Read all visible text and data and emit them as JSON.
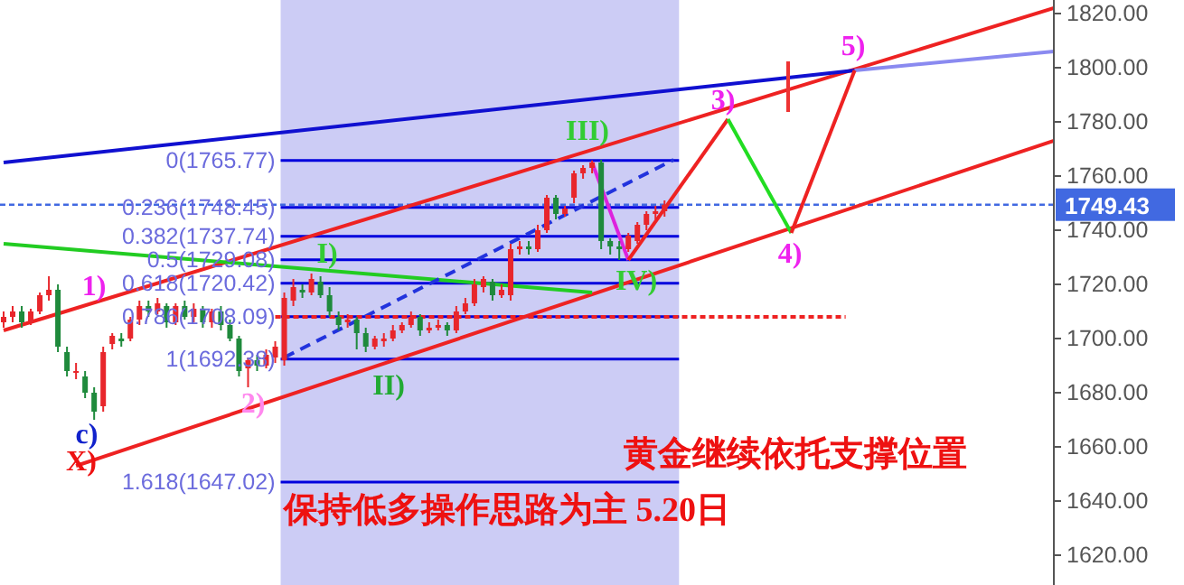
{
  "chart_data": {
    "type": "candlestick",
    "colors": [
      "#e8262b",
      "#e8262b",
      "#1f8a3c",
      "#e8262b",
      "#e8262b",
      "#e8262b",
      "#1f8a3c",
      "#1f8a3c",
      "#e8262b",
      "#1f8a3c",
      "#1f8a3c",
      "#e8262b",
      "#e8262b",
      "#1f8a3c",
      "#e8262b",
      "#e8262b",
      "#1f8a3c",
      "#e8262b",
      "#1f8a3c",
      "#e8262b",
      "#1f8a3c",
      "#e8262b",
      "#1f8a3c",
      "#e8262b",
      "#1f8a3c",
      "#1f8a3c",
      "#1f8a3c",
      "#e8262b",
      "#1f8a3c",
      "#e8262b",
      "#e8262b",
      "#e8262b",
      "#e8262b",
      "#1f8a3c",
      "#e8262b",
      "#1f8a3c",
      "#1f8a3c",
      "#1f8a3c",
      "#e8262b",
      "#1f8a3c",
      "#1f8a3c",
      "#e8262b",
      "#e8262b",
      "#e8262b",
      "#e8262b",
      "#e8262b",
      "#1f8a3c",
      "#e8262b",
      "#e8262b",
      "#1f8a3c",
      "#e8262b",
      "#e8262b",
      "#e8262b",
      "#e8262b",
      "#1f8a3c",
      "#e8262b",
      "#e8262b",
      "#e8262b",
      "#1f8a3c",
      "#e8262b",
      "#e8262b",
      "#1f8a3c",
      "#e8262b",
      "#e8262b",
      "#e8262b",
      "#e8262b",
      "#1f8a3c",
      "#1f8a3c",
      "#1f8a3c",
      "#e8262b",
      "#e8262b",
      "#e8262b",
      "#e8262b",
      "#e8262b",
      null,
      null,
      null,
      null,
      null,
      null,
      null,
      null,
      null,
      null,
      null,
      null,
      null,
      null,
      null,
      null,
      null,
      null,
      null,
      null,
      null,
      null,
      null,
      null,
      null,
      null,
      null,
      null,
      null,
      null,
      null,
      null,
      null,
      null,
      null,
      null,
      null,
      null,
      null,
      null,
      null,
      null,
      null
    ],
    "categories": [
      null,
      null,
      null,
      null,
      null,
      null,
      null,
      null,
      null,
      null,
      null,
      null,
      null,
      null,
      null,
      null,
      null,
      null,
      null,
      null,
      null,
      null,
      null,
      null,
      null,
      null,
      null,
      null,
      null,
      null,
      null,
      null,
      null,
      null,
      null,
      null,
      null,
      null,
      null,
      null,
      null,
      null,
      null,
      null,
      null,
      null,
      null,
      null,
      null,
      null,
      null,
      null,
      null,
      null,
      null,
      null,
      null,
      null,
      null,
      null,
      null,
      null,
      null,
      null,
      null,
      null,
      null,
      null,
      null,
      null,
      null,
      null,
      null,
      null,
      null,
      null,
      null,
      null,
      null,
      null,
      null,
      null,
      null,
      null,
      null,
      null,
      null,
      null,
      null,
      null,
      null,
      null,
      null,
      null,
      null,
      null,
      null,
      null,
      null,
      null,
      null,
      null,
      null,
      null,
      null,
      null,
      null,
      null,
      null,
      null,
      null,
      null,
      null,
      null,
      null,
      null,
      null
    ],
    "ohlc": [
      [
        1706,
        1710,
        1704,
        1708
      ],
      [
        1708,
        1712,
        1706,
        1710
      ],
      [
        1710,
        1712,
        1704,
        1706
      ],
      [
        1706,
        1711,
        1705,
        1710
      ],
      [
        1710,
        1717,
        1709,
        1716
      ],
      [
        1716,
        1723,
        1714,
        1718
      ],
      [
        1718,
        1720,
        1695,
        1697
      ],
      [
        1695,
        1697,
        1686,
        1688
      ],
      [
        1688,
        1691,
        1685,
        1688
      ],
      [
        1686,
        1688,
        1678,
        1680
      ],
      [
        1680,
        1682,
        1670,
        1673
      ],
      [
        1675,
        1697,
        1673,
        1695
      ],
      [
        1698,
        1702,
        1696,
        1701
      ],
      [
        1700,
        1702,
        1697,
        1699
      ],
      [
        1700,
        1708,
        1699,
        1707
      ],
      [
        1707,
        1714,
        1705,
        1712
      ],
      [
        1712,
        1714,
        1708,
        1710
      ],
      [
        1710,
        1715,
        1709,
        1713
      ],
      [
        1712,
        1713,
        1704,
        1706
      ],
      [
        1706,
        1713,
        1705,
        1712
      ],
      [
        1712,
        1714,
        1707,
        1708
      ],
      [
        1708,
        1713,
        1706,
        1711
      ],
      [
        1711,
        1712,
        1704,
        1706
      ],
      [
        1706,
        1711,
        1704,
        1710
      ],
      [
        1710,
        1712,
        1703,
        1705
      ],
      [
        1705,
        1707,
        1699,
        1700
      ],
      [
        1700,
        1701,
        1686,
        1688
      ],
      [
        1689,
        1693,
        1682,
        1692
      ],
      [
        1692,
        1694,
        1688,
        1690
      ],
      [
        1690,
        1696,
        1689,
        1694
      ],
      [
        1693,
        1699,
        1691,
        1697
      ],
      [
        1692,
        1717,
        1690,
        1715
      ],
      [
        1714,
        1722,
        1712,
        1719
      ],
      [
        1718,
        1720,
        1715,
        1717
      ],
      [
        1717,
        1724,
        1716,
        1722
      ],
      [
        1721,
        1723,
        1715,
        1716
      ],
      [
        1716,
        1719,
        1708,
        1710
      ],
      [
        1708,
        1710,
        1703,
        1705
      ],
      [
        1706,
        1709,
        1704,
        1707
      ],
      [
        1707,
        1708,
        1696,
        1702
      ],
      [
        1702,
        1704,
        1695,
        1697
      ],
      [
        1697,
        1701,
        1696,
        1700
      ],
      [
        1699,
        1702,
        1697,
        1700
      ],
      [
        1700,
        1705,
        1699,
        1703
      ],
      [
        1703,
        1706,
        1702,
        1705
      ],
      [
        1705,
        1710,
        1704,
        1708
      ],
      [
        1708,
        1709,
        1701,
        1703
      ],
      [
        1703,
        1706,
        1702,
        1704
      ],
      [
        1704,
        1707,
        1703,
        1705
      ],
      [
        1705,
        1706,
        1701,
        1703
      ],
      [
        1703,
        1712,
        1702,
        1710
      ],
      [
        1710,
        1715,
        1709,
        1713
      ],
      [
        1713,
        1722,
        1712,
        1720
      ],
      [
        1719,
        1723,
        1717,
        1722
      ],
      [
        1721,
        1722,
        1714,
        1716
      ],
      [
        1716,
        1720,
        1715,
        1718
      ],
      [
        1716,
        1735,
        1714,
        1733
      ],
      [
        1733,
        1736,
        1731,
        1734
      ],
      [
        1734,
        1736,
        1731,
        1733
      ],
      [
        1733,
        1742,
        1732,
        1740
      ],
      [
        1740,
        1753,
        1739,
        1752
      ],
      [
        1752,
        1753,
        1744,
        1746
      ],
      [
        1746,
        1749,
        1745,
        1748
      ],
      [
        1752,
        1762,
        1750,
        1761
      ],
      [
        1761,
        1764,
        1759,
        1763
      ],
      [
        1763,
        1765.77,
        1761,
        1765
      ],
      [
        1765,
        1766,
        1733,
        1736
      ],
      [
        1736,
        1737,
        1731,
        1734
      ],
      [
        1734,
        1736,
        1729,
        1733
      ],
      [
        1733,
        1739,
        1732,
        1738
      ],
      [
        1736,
        1743,
        1735,
        1742
      ],
      [
        1742,
        1747,
        1740,
        1746
      ],
      [
        1746,
        1749,
        1744,
        1747
      ],
      [
        1747,
        1751,
        1745,
        1749.43
      ],
      null,
      null,
      null,
      null,
      null,
      null,
      null,
      null,
      null,
      null,
      null,
      null,
      null,
      null,
      null,
      null,
      null,
      null,
      null,
      null,
      null,
      null,
      null,
      null,
      null,
      null,
      null,
      null,
      null,
      null,
      null,
      null,
      null,
      null,
      null,
      null,
      null,
      null,
      null,
      null,
      null,
      null,
      null
    ],
    "ylim": [
      1609,
      1825
    ],
    "yticks": [
      {
        "value": 1620,
        "label": "1620.00"
      },
      {
        "value": 1640,
        "label": "1640.00"
      },
      {
        "value": 1660,
        "label": "1660.00"
      },
      {
        "value": 1680,
        "label": "1680.00"
      },
      {
        "value": 1700,
        "label": "1700.00"
      },
      {
        "value": 1720,
        "label": "1720.00"
      },
      {
        "value": 1740,
        "label": "1740.00"
      },
      {
        "value": 1760,
        "label": "1760.00"
      },
      {
        "value": 1780,
        "label": "1780.00"
      },
      {
        "value": 1800,
        "label": "1800.00"
      },
      {
        "value": 1820,
        "label": "1820.00"
      }
    ],
    "tick_labels": "y",
    "grid": false,
    "ref_lines": [
      {
        "axis": "y",
        "value": 1765.77,
        "label": "0(1765.77)",
        "color": "#0000dd"
      },
      {
        "axis": "y",
        "value": 1748.45,
        "label": "0.236(1748.45)",
        "color": "#0000dd"
      },
      {
        "axis": "y",
        "value": 1737.74,
        "label": "0.382(1737.74)",
        "color": "#0000dd"
      },
      {
        "axis": "y",
        "value": 1729.08,
        "label": "0.5(1729.08)",
        "color": "#0000dd"
      },
      {
        "axis": "y",
        "value": 1720.42,
        "label": "0.618(1720.42)",
        "color": "#0000dd"
      },
      {
        "axis": "y",
        "value": 1708.09,
        "label": "0.786(1708.09)",
        "color": "#0000dd"
      },
      {
        "axis": "y",
        "value": 1692.38,
        "label": "1(1692.38)",
        "color": "#0000dd"
      },
      {
        "axis": "y",
        "value": 1647.02,
        "label": "1.618(1647.02)",
        "color": "#0000dd"
      },
      {
        "axis": "y",
        "value": 1749.43,
        "label": "1749.43",
        "color": "#4169e1",
        "line_style": "dotted"
      }
    ],
    "series": [
      {
        "type": "line",
        "color": "#ee2222",
        "values": [
          1703,
          null,
          null,
          null,
          null,
          null,
          null,
          null,
          null,
          null,
          null,
          null,
          null,
          null,
          null,
          null,
          null,
          null,
          null,
          null,
          null,
          null,
          null,
          null,
          null,
          null,
          null,
          null,
          null,
          null,
          null,
          null,
          null,
          null,
          null,
          null,
          null,
          null,
          null,
          null,
          null,
          null,
          null,
          null,
          null,
          null,
          null,
          null,
          null,
          null,
          null,
          null,
          null,
          null,
          null,
          null,
          null,
          null,
          null,
          null,
          null,
          null,
          null,
          null,
          null,
          null,
          null,
          null,
          null,
          null,
          null,
          null,
          null,
          null,
          null,
          null,
          null,
          null,
          null,
          null,
          null,
          null,
          null,
          null,
          null,
          null,
          null,
          null,
          null,
          null,
          null,
          null,
          null,
          null,
          null,
          null,
          null,
          null,
          null,
          null,
          null,
          null,
          null,
          null,
          null,
          null,
          null,
          null,
          null,
          null,
          null,
          null,
          null,
          null,
          null,
          null,
          1822
        ]
      },
      {
        "type": "line",
        "color": "#ee2222",
        "values": [
          null,
          null,
          null,
          null,
          null,
          null,
          null,
          null,
          1653,
          null,
          null,
          null,
          null,
          null,
          null,
          null,
          null,
          null,
          null,
          null,
          null,
          null,
          null,
          null,
          null,
          null,
          null,
          null,
          null,
          null,
          null,
          null,
          null,
          null,
          null,
          null,
          null,
          null,
          null,
          null,
          null,
          null,
          null,
          null,
          null,
          null,
          null,
          null,
          null,
          null,
          null,
          null,
          null,
          null,
          null,
          null,
          null,
          null,
          null,
          null,
          null,
          null,
          null,
          null,
          null,
          null,
          null,
          null,
          null,
          null,
          null,
          null,
          null,
          null,
          null,
          null,
          null,
          null,
          null,
          null,
          null,
          null,
          null,
          null,
          null,
          null,
          null,
          null,
          null,
          null,
          null,
          null,
          null,
          null,
          null,
          null,
          null,
          null,
          null,
          null,
          null,
          null,
          null,
          null,
          null,
          null,
          null,
          null,
          null,
          null,
          null,
          null,
          null,
          null,
          null,
          null,
          1773
        ]
      },
      {
        "type": "line",
        "color": "#1010d0",
        "values": [
          1765,
          null,
          null,
          null,
          null,
          null,
          null,
          null,
          null,
          null,
          null,
          null,
          null,
          null,
          null,
          null,
          null,
          null,
          null,
          null,
          null,
          null,
          null,
          null,
          null,
          null,
          null,
          null,
          null,
          null,
          null,
          null,
          null,
          null,
          null,
          null,
          null,
          null,
          null,
          null,
          null,
          null,
          null,
          null,
          null,
          null,
          null,
          null,
          null,
          null,
          null,
          null,
          null,
          null,
          null,
          null,
          null,
          null,
          null,
          null,
          null,
          null,
          null,
          null,
          null,
          null,
          null,
          null,
          null,
          null,
          null,
          null,
          null,
          null,
          null,
          null,
          null,
          null,
          null,
          null,
          null,
          null,
          null,
          null,
          null,
          null,
          null,
          null,
          null,
          null,
          null,
          null,
          null,
          null,
          1799,
          null,
          null,
          null,
          null,
          null,
          null,
          null,
          null,
          null,
          null,
          null,
          null,
          null,
          null,
          null,
          null,
          null,
          null,
          null,
          null,
          null,
          null
        ]
      },
      {
        "type": "line",
        "color": "#8a8af0",
        "values": [
          null,
          null,
          null,
          null,
          null,
          null,
          null,
          null,
          null,
          null,
          null,
          null,
          null,
          null,
          null,
          null,
          null,
          null,
          null,
          null,
          null,
          null,
          null,
          null,
          null,
          null,
          null,
          null,
          null,
          null,
          null,
          null,
          null,
          null,
          null,
          null,
          null,
          null,
          null,
          null,
          null,
          null,
          null,
          null,
          null,
          null,
          null,
          null,
          null,
          null,
          null,
          null,
          null,
          null,
          null,
          null,
          null,
          null,
          null,
          null,
          null,
          null,
          null,
          null,
          null,
          null,
          null,
          null,
          null,
          null,
          null,
          null,
          null,
          null,
          null,
          null,
          null,
          null,
          null,
          null,
          null,
          null,
          null,
          null,
          null,
          null,
          null,
          null,
          null,
          null,
          null,
          null,
          null,
          null,
          1799,
          null,
          null,
          null,
          null,
          null,
          null,
          null,
          null,
          null,
          null,
          null,
          null,
          null,
          null,
          null,
          null,
          null,
          null,
          null,
          null,
          null,
          1806
        ]
      },
      {
        "type": "line",
        "color": "#22cc22",
        "values": [
          1735,
          null,
          null,
          null,
          null,
          null,
          null,
          null,
          null,
          null,
          null,
          null,
          null,
          null,
          null,
          null,
          null,
          null,
          null,
          null,
          null,
          null,
          null,
          null,
          null,
          null,
          null,
          null,
          null,
          null,
          null,
          null,
          null,
          null,
          null,
          null,
          null,
          null,
          null,
          null,
          null,
          null,
          null,
          null,
          null,
          null,
          null,
          null,
          null,
          null,
          null,
          null,
          null,
          null,
          null,
          null,
          null,
          null,
          null,
          null,
          null,
          null,
          null,
          null,
          null,
          1717,
          null,
          null,
          null,
          null,
          null,
          null,
          null,
          null,
          null,
          null,
          null,
          null,
          null,
          null,
          null,
          null,
          null,
          null,
          null,
          null,
          null,
          null,
          null,
          null,
          null,
          null,
          null,
          null,
          null,
          null,
          null,
          null,
          null,
          null,
          null,
          null,
          null,
          null,
          null,
          null,
          null,
          null,
          null,
          null,
          null,
          null,
          null,
          null,
          null,
          null,
          null
        ]
      },
      {
        "type": "line",
        "color": "#2233dd",
        "line_style": "dashed",
        "values": [
          null,
          null,
          null,
          null,
          null,
          null,
          null,
          null,
          null,
          null,
          null,
          null,
          null,
          null,
          null,
          null,
          null,
          null,
          null,
          null,
          null,
          null,
          null,
          null,
          null,
          null,
          null,
          null,
          null,
          null,
          null,
          1693,
          null,
          null,
          null,
          null,
          null,
          null,
          null,
          null,
          null,
          null,
          null,
          null,
          null,
          null,
          null,
          null,
          null,
          null,
          null,
          null,
          null,
          null,
          null,
          null,
          null,
          null,
          null,
          null,
          null,
          null,
          null,
          null,
          null,
          null,
          null,
          null,
          null,
          null,
          null,
          null,
          null,
          null,
          1766,
          null,
          null,
          null,
          null,
          null,
          null,
          null,
          null,
          null,
          null,
          null,
          null,
          null,
          null,
          null,
          null,
          null,
          null,
          null,
          null,
          null,
          null,
          null,
          null,
          null,
          null,
          null,
          null,
          null,
          null,
          null,
          null,
          null,
          null,
          null,
          null,
          null,
          null,
          null,
          null,
          null,
          null
        ]
      },
      {
        "type": "line",
        "color": "#ee2222",
        "line_style": "dotted",
        "values": [
          null,
          null,
          null,
          null,
          null,
          null,
          null,
          null,
          null,
          null,
          null,
          null,
          null,
          null,
          null,
          null,
          null,
          null,
          null,
          null,
          null,
          null,
          null,
          null,
          null,
          null,
          null,
          null,
          null,
          null,
          1708,
          null,
          null,
          null,
          null,
          null,
          null,
          null,
          null,
          null,
          null,
          null,
          null,
          null,
          null,
          null,
          null,
          null,
          null,
          null,
          null,
          null,
          null,
          null,
          null,
          null,
          null,
          null,
          null,
          null,
          null,
          null,
          null,
          null,
          null,
          null,
          null,
          null,
          null,
          null,
          null,
          null,
          null,
          null,
          null,
          null,
          null,
          null,
          null,
          null,
          null,
          null,
          null,
          null,
          null,
          null,
          null,
          null,
          null,
          null,
          null,
          null,
          null,
          1708,
          null,
          null,
          null,
          null,
          null,
          null,
          null,
          null,
          null,
          null,
          null,
          null,
          null,
          null,
          null,
          null,
          null,
          null,
          null,
          null,
          null,
          null,
          null
        ]
      },
      {
        "type": "line",
        "color": "#dd22dd",
        "values": [
          null,
          null,
          null,
          null,
          null,
          null,
          null,
          null,
          null,
          null,
          null,
          null,
          null,
          null,
          null,
          null,
          null,
          null,
          null,
          null,
          null,
          null,
          null,
          null,
          null,
          null,
          null,
          null,
          null,
          null,
          null,
          null,
          null,
          null,
          null,
          null,
          null,
          null,
          null,
          null,
          null,
          null,
          null,
          null,
          null,
          null,
          null,
          null,
          null,
          null,
          null,
          null,
          null,
          null,
          null,
          null,
          null,
          null,
          null,
          null,
          null,
          null,
          null,
          null,
          null,
          1765,
          null,
          null,
          null,
          1729,
          null,
          null,
          null,
          null,
          null,
          null,
          null,
          null,
          null,
          null,
          null,
          null,
          null,
          null,
          null,
          null,
          null,
          null,
          null,
          null,
          null,
          null,
          null,
          null,
          null,
          null,
          null,
          null,
          null,
          null,
          null,
          null,
          null,
          null,
          null,
          null,
          null,
          null,
          null,
          null,
          null,
          null,
          null,
          null,
          null,
          null,
          null
        ]
      },
      {
        "type": "line",
        "color": "#ee2222",
        "values": [
          null,
          null,
          null,
          null,
          null,
          null,
          null,
          null,
          null,
          null,
          null,
          null,
          null,
          null,
          null,
          null,
          null,
          null,
          null,
          null,
          null,
          null,
          null,
          null,
          null,
          null,
          null,
          null,
          null,
          null,
          null,
          null,
          null,
          null,
          null,
          null,
          null,
          null,
          null,
          null,
          null,
          null,
          null,
          null,
          null,
          null,
          null,
          null,
          null,
          null,
          null,
          null,
          null,
          null,
          null,
          null,
          null,
          null,
          null,
          null,
          null,
          null,
          null,
          null,
          null,
          null,
          null,
          null,
          null,
          1729,
          null,
          null,
          null,
          null,
          null,
          null,
          null,
          null,
          null,
          null,
          1781,
          null,
          null,
          null,
          null,
          null,
          null,
          null,
          null,
          null,
          null,
          null,
          null,
          null,
          null,
          null,
          null,
          null,
          null,
          null,
          null,
          null,
          null,
          null,
          null,
          null,
          null,
          null,
          null,
          null,
          null,
          null,
          null,
          null,
          null,
          null,
          null
        ]
      },
      {
        "type": "line",
        "color": "#22dd22",
        "values": [
          null,
          null,
          null,
          null,
          null,
          null,
          null,
          null,
          null,
          null,
          null,
          null,
          null,
          null,
          null,
          null,
          null,
          null,
          null,
          null,
          null,
          null,
          null,
          null,
          null,
          null,
          null,
          null,
          null,
          null,
          null,
          null,
          null,
          null,
          null,
          null,
          null,
          null,
          null,
          null,
          null,
          null,
          null,
          null,
          null,
          null,
          null,
          null,
          null,
          null,
          null,
          null,
          null,
          null,
          null,
          null,
          null,
          null,
          null,
          null,
          null,
          null,
          null,
          null,
          null,
          null,
          null,
          null,
          null,
          null,
          null,
          null,
          null,
          null,
          null,
          null,
          null,
          null,
          null,
          null,
          1781,
          null,
          null,
          null,
          null,
          null,
          null,
          1739,
          null,
          null,
          null,
          null,
          null,
          null,
          null,
          null,
          null,
          null,
          null,
          null,
          null,
          null,
          null,
          null,
          null,
          null,
          null,
          null,
          null,
          null,
          null,
          null,
          null,
          null,
          null,
          null,
          null
        ]
      },
      {
        "type": "line",
        "color": "#ee2222",
        "values": [
          null,
          null,
          null,
          null,
          null,
          null,
          null,
          null,
          null,
          null,
          null,
          null,
          null,
          null,
          null,
          null,
          null,
          null,
          null,
          null,
          null,
          null,
          null,
          null,
          null,
          null,
          null,
          null,
          null,
          null,
          null,
          null,
          null,
          null,
          null,
          null,
          null,
          null,
          null,
          null,
          null,
          null,
          null,
          null,
          null,
          null,
          null,
          null,
          null,
          null,
          null,
          null,
          null,
          null,
          null,
          null,
          null,
          null,
          null,
          null,
          null,
          null,
          null,
          null,
          null,
          null,
          null,
          null,
          null,
          null,
          null,
          null,
          null,
          null,
          null,
          null,
          null,
          null,
          null,
          null,
          null,
          null,
          null,
          null,
          null,
          null,
          null,
          1739,
          null,
          null,
          null,
          null,
          null,
          null,
          1799,
          null,
          null,
          null,
          null,
          null,
          null,
          null,
          null,
          null,
          null,
          null,
          null,
          null,
          null,
          null,
          null,
          null,
          null,
          null,
          null,
          null,
          null
        ]
      }
    ],
    "annotations": [
      "X)",
      "c)",
      "1)",
      "2)",
      "I)",
      "II)",
      "III)",
      "IV)",
      "3)",
      "4)",
      "5)",
      "黄金继续依托支撑位置",
      "保持低多操作思路为主 5.20日"
    ]
  }
}
